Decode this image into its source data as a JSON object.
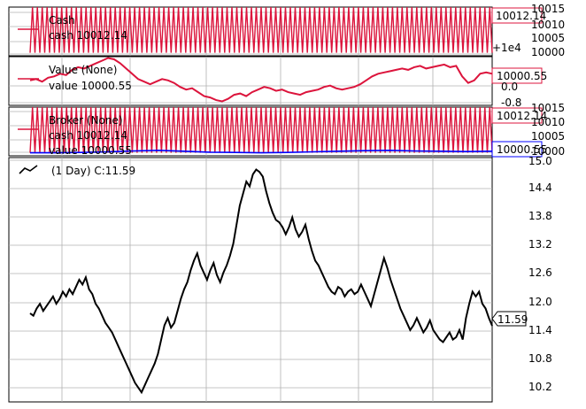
{
  "colors": {
    "cash": "#dc143c",
    "value": "#dc143c",
    "broker_cash": "#dc143c",
    "broker_value": "#0000ff",
    "price": "#000000"
  },
  "chart_data": [
    {
      "type": "line",
      "legend": {
        "title": "Cash",
        "entries": [
          "cash 10012.14"
        ],
        "placement": "top-left"
      },
      "yticks": [
        "10015",
        "10010",
        "10005",
        "10000"
      ],
      "ylim": [
        9999,
        10015
      ],
      "offset_label": "+1e4",
      "last_label": "10012.14",
      "series": [
        {
          "name": "cash",
          "pattern": "oscillating",
          "low": 10000,
          "high": 10015,
          "last": 10012.14,
          "cycles": 95
        }
      ],
      "grid": true
    },
    {
      "type": "line",
      "legend": {
        "title": "Value (None)",
        "entries": [
          "value 10000.55"
        ],
        "placement": "top-left"
      },
      "yticks": [
        "0.0",
        "-0.8"
      ],
      "ylim": [
        -0.9,
        0.95
      ],
      "last_label": "10000.55",
      "series": [
        {
          "name": "value",
          "values": [
            0.05,
            0.1,
            0.0,
            0.15,
            0.2,
            0.3,
            0.25,
            0.45,
            0.55,
            0.5,
            0.6,
            0.7,
            0.8,
            0.9,
            0.85,
            0.7,
            0.5,
            0.3,
            0.1,
            0.0,
            -0.1,
            0.0,
            0.1,
            0.05,
            -0.05,
            -0.2,
            -0.3,
            -0.25,
            -0.4,
            -0.55,
            -0.6,
            -0.7,
            -0.75,
            -0.65,
            -0.5,
            -0.45,
            -0.55,
            -0.4,
            -0.3,
            -0.2,
            -0.25,
            -0.35,
            -0.3,
            -0.4,
            -0.45,
            -0.5,
            -0.4,
            -0.35,
            -0.3,
            -0.2,
            -0.15,
            -0.25,
            -0.3,
            -0.25,
            -0.2,
            -0.1,
            0.05,
            0.2,
            0.3,
            0.35,
            0.4,
            0.45,
            0.5,
            0.45,
            0.55,
            0.6,
            0.5,
            0.55,
            0.6,
            0.65,
            0.55,
            0.6,
            0.2,
            -0.05,
            0.05,
            0.3,
            0.35,
            0.3
          ]
        }
      ],
      "grid": true
    },
    {
      "type": "line",
      "legend": {
        "title": "Broker (None)",
        "entries": [
          "cash 10012.14",
          "value 10000.55"
        ],
        "placement": "top-left"
      },
      "yticks": [
        "10015",
        "10010",
        "10005",
        "10000"
      ],
      "ylim": [
        9999,
        10015
      ],
      "cash_label": "10012.14",
      "value_label": "10000.55",
      "series": [
        {
          "name": "cash",
          "pattern": "oscillating",
          "low": 10000,
          "high": 10015,
          "last": 10012.14,
          "cycles": 95
        },
        {
          "name": "value",
          "values": [
            10000.0,
            10000.0,
            10000.1,
            10000.3,
            10000.6,
            10000.8,
            10000.5,
            10000.2,
            10000.1,
            10000.0,
            10000.1,
            10000.3,
            10000.5,
            10000.7,
            10000.8,
            10000.6,
            10000.5,
            10000.4,
            10000.5
          ]
        }
      ],
      "grid": true
    },
    {
      "type": "line",
      "legend": {
        "entries": [
          "(1 Day) C:11.59"
        ],
        "placement": "top-left"
      },
      "yticks": [
        "15.0",
        "14.4",
        "13.8",
        "13.2",
        "12.6",
        "12.0",
        "11.4",
        "10.8",
        "10.2"
      ],
      "ylim": [
        10.0,
        15.1
      ],
      "last_label": "11.59",
      "series": [
        {
          "name": "close",
          "values": [
            11.85,
            11.8,
            11.95,
            12.05,
            11.9,
            12.0,
            12.1,
            12.2,
            12.05,
            12.15,
            12.3,
            12.2,
            12.35,
            12.25,
            12.4,
            12.55,
            12.45,
            12.6,
            12.35,
            12.25,
            12.05,
            11.95,
            11.8,
            11.65,
            11.55,
            11.45,
            11.3,
            11.15,
            11.0,
            10.85,
            10.7,
            10.55,
            10.4,
            10.3,
            10.2,
            10.35,
            10.5,
            10.65,
            10.8,
            11.0,
            11.3,
            11.6,
            11.75,
            11.55,
            11.65,
            11.9,
            12.15,
            12.35,
            12.5,
            12.75,
            12.95,
            13.1,
            12.85,
            12.7,
            12.55,
            12.75,
            12.9,
            12.65,
            12.5,
            12.7,
            12.85,
            13.05,
            13.3,
            13.7,
            14.1,
            14.35,
            14.6,
            14.5,
            14.75,
            14.85,
            14.8,
            14.7,
            14.4,
            14.15,
            13.95,
            13.8,
            13.75,
            13.65,
            13.5,
            13.65,
            13.85,
            13.6,
            13.45,
            13.55,
            13.7,
            13.4,
            13.15,
            12.95,
            12.85,
            12.7,
            12.55,
            12.4,
            12.3,
            12.25,
            12.4,
            12.35,
            12.2,
            12.3,
            12.35,
            12.25,
            12.3,
            12.45,
            12.3,
            12.15,
            12.0,
            12.25,
            12.5,
            12.75,
            13.0,
            12.8,
            12.55,
            12.35,
            12.15,
            11.95,
            11.8,
            11.65,
            11.5,
            11.6,
            11.75,
            11.6,
            11.45,
            11.55,
            11.7,
            11.5,
            11.4,
            11.3,
            11.25,
            11.35,
            11.45,
            11.3,
            11.35,
            11.5,
            11.3,
            11.75,
            12.05,
            12.3,
            12.2,
            12.3,
            12.05,
            11.95,
            11.75,
            11.59
          ]
        }
      ],
      "grid": true
    }
  ]
}
